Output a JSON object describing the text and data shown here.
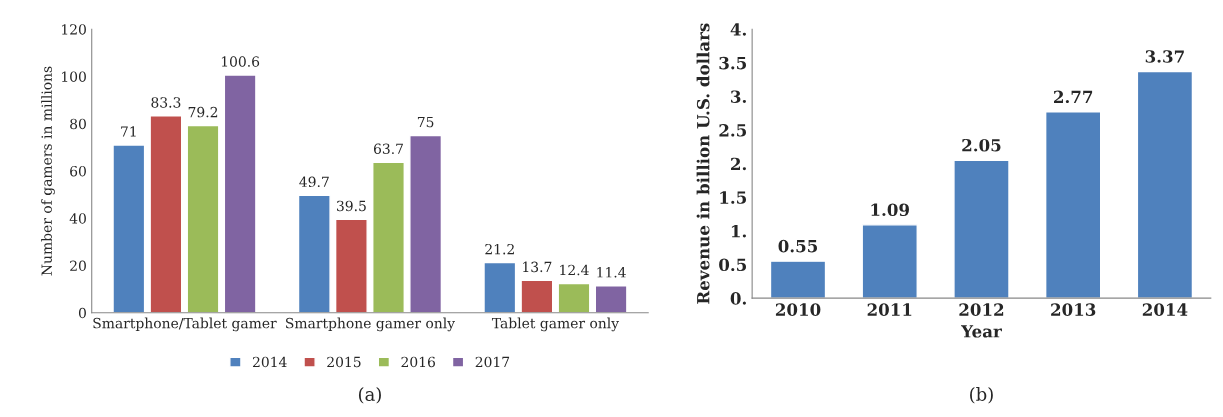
{
  "chart_data": [
    {
      "type": "bar",
      "ylabel": "Number of gamers in millions",
      "categories": [
        "Smartphone/Tablet gamer",
        "Smartphone gamer only",
        "Tablet gamer only"
      ],
      "series": [
        {
          "name": "2014",
          "color": "#4f81bd",
          "values": [
            71,
            49.7,
            21.2
          ]
        },
        {
          "name": "2015",
          "color": "#c0504d",
          "values": [
            83.3,
            39.5,
            13.7
          ]
        },
        {
          "name": "2016",
          "color": "#9bbb59",
          "values": [
            79.2,
            63.7,
            12.4
          ]
        },
        {
          "name": "2017",
          "color": "#8064a2",
          "values": [
            100.6,
            75,
            11.4
          ]
        }
      ],
      "ylim": [
        0,
        120
      ],
      "yticks": [
        0,
        20,
        40,
        60,
        80,
        100,
        120
      ],
      "data_labels": true,
      "legend": "bottom",
      "annotations": [
        "(a)"
      ]
    },
    {
      "type": "bar",
      "xlabel": "Year",
      "ylabel": "Revenue in billion U.S. dollars",
      "categories": [
        "2010",
        "2011",
        "2012",
        "2013",
        "2014"
      ],
      "values": [
        0.55,
        1.09,
        2.05,
        2.77,
        3.37
      ],
      "color": "#4f81bd",
      "ylim": [
        0,
        4
      ],
      "yticks": [
        {
          "value": 0,
          "label": "0."
        },
        0.5,
        {
          "value": 1,
          "label": "1."
        },
        1.5,
        {
          "value": 2,
          "label": "2."
        },
        2.5,
        {
          "value": 3,
          "label": "3."
        },
        3.5,
        {
          "value": 4,
          "label": "4."
        }
      ],
      "data_labels": true,
      "annotations": [
        "(b)"
      ]
    }
  ]
}
